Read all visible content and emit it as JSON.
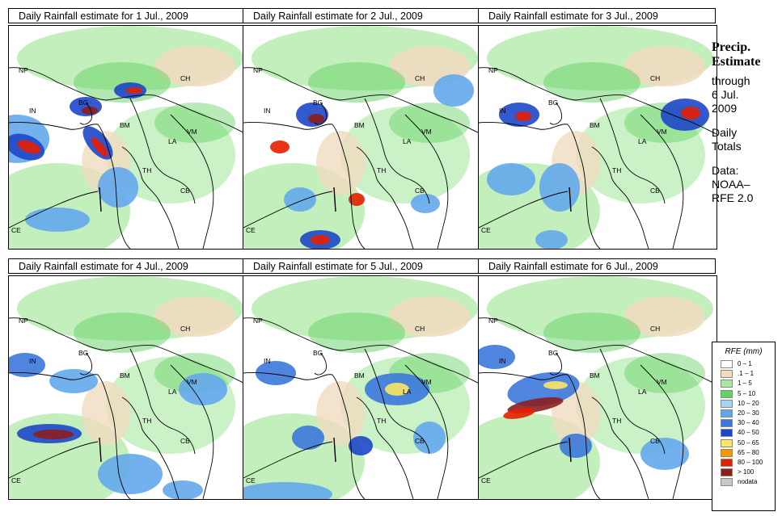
{
  "panels": [
    {
      "title": "Daily Rainfall estimate for  1 Jul., 2009"
    },
    {
      "title": "Daily Rainfall estimate for  2 Jul., 2009"
    },
    {
      "title": "Daily Rainfall estimate for  3 Jul., 2009"
    },
    {
      "title": "Daily Rainfall estimate for  4 Jul., 2009"
    },
    {
      "title": "Daily Rainfall estimate for  5 Jul., 2009"
    },
    {
      "title": "Daily Rainfall estimate for  6 Jul., 2009"
    }
  ],
  "region_labels": [
    "NP",
    "IN",
    "BG",
    "CH",
    "BM",
    "VM",
    "LA",
    "TH",
    "CB",
    "CE"
  ],
  "side_text": {
    "heading_line1": "Precip.",
    "heading_line2": "Estimate",
    "through": "through",
    "date_line1": "6 Jul.",
    "date_line2": "2009",
    "daily_line1": "Daily",
    "daily_line2": "Totals",
    "data_line1": "Data:",
    "data_line2": "NOAA–",
    "data_line3": "RFE 2.0"
  },
  "legend": {
    "title": "RFE (mm)",
    "items": [
      {
        "label": "0 – 1",
        "color": "#ffffff"
      },
      {
        "label": ".1 – 1",
        "color": "#f0dcc0"
      },
      {
        "label": "1 – 5",
        "color": "#a8e8a0"
      },
      {
        "label": "5 – 10",
        "color": "#64d264"
      },
      {
        "label": "10 – 20",
        "color": "#a8d4f4"
      },
      {
        "label": "20 – 30",
        "color": "#64a8ec"
      },
      {
        "label": "30 – 40",
        "color": "#3c78dc"
      },
      {
        "label": "40 – 50",
        "color": "#1e46c8"
      },
      {
        "label": "50 – 65",
        "color": "#fae664"
      },
      {
        "label": "65 – 80",
        "color": "#fa9600"
      },
      {
        "label": "80 – 100",
        "color": "#e61e00"
      },
      {
        "label": "> 100",
        "color": "#8c1e1e"
      },
      {
        "label": "nodata",
        "color": "#c8c8c8"
      }
    ]
  }
}
